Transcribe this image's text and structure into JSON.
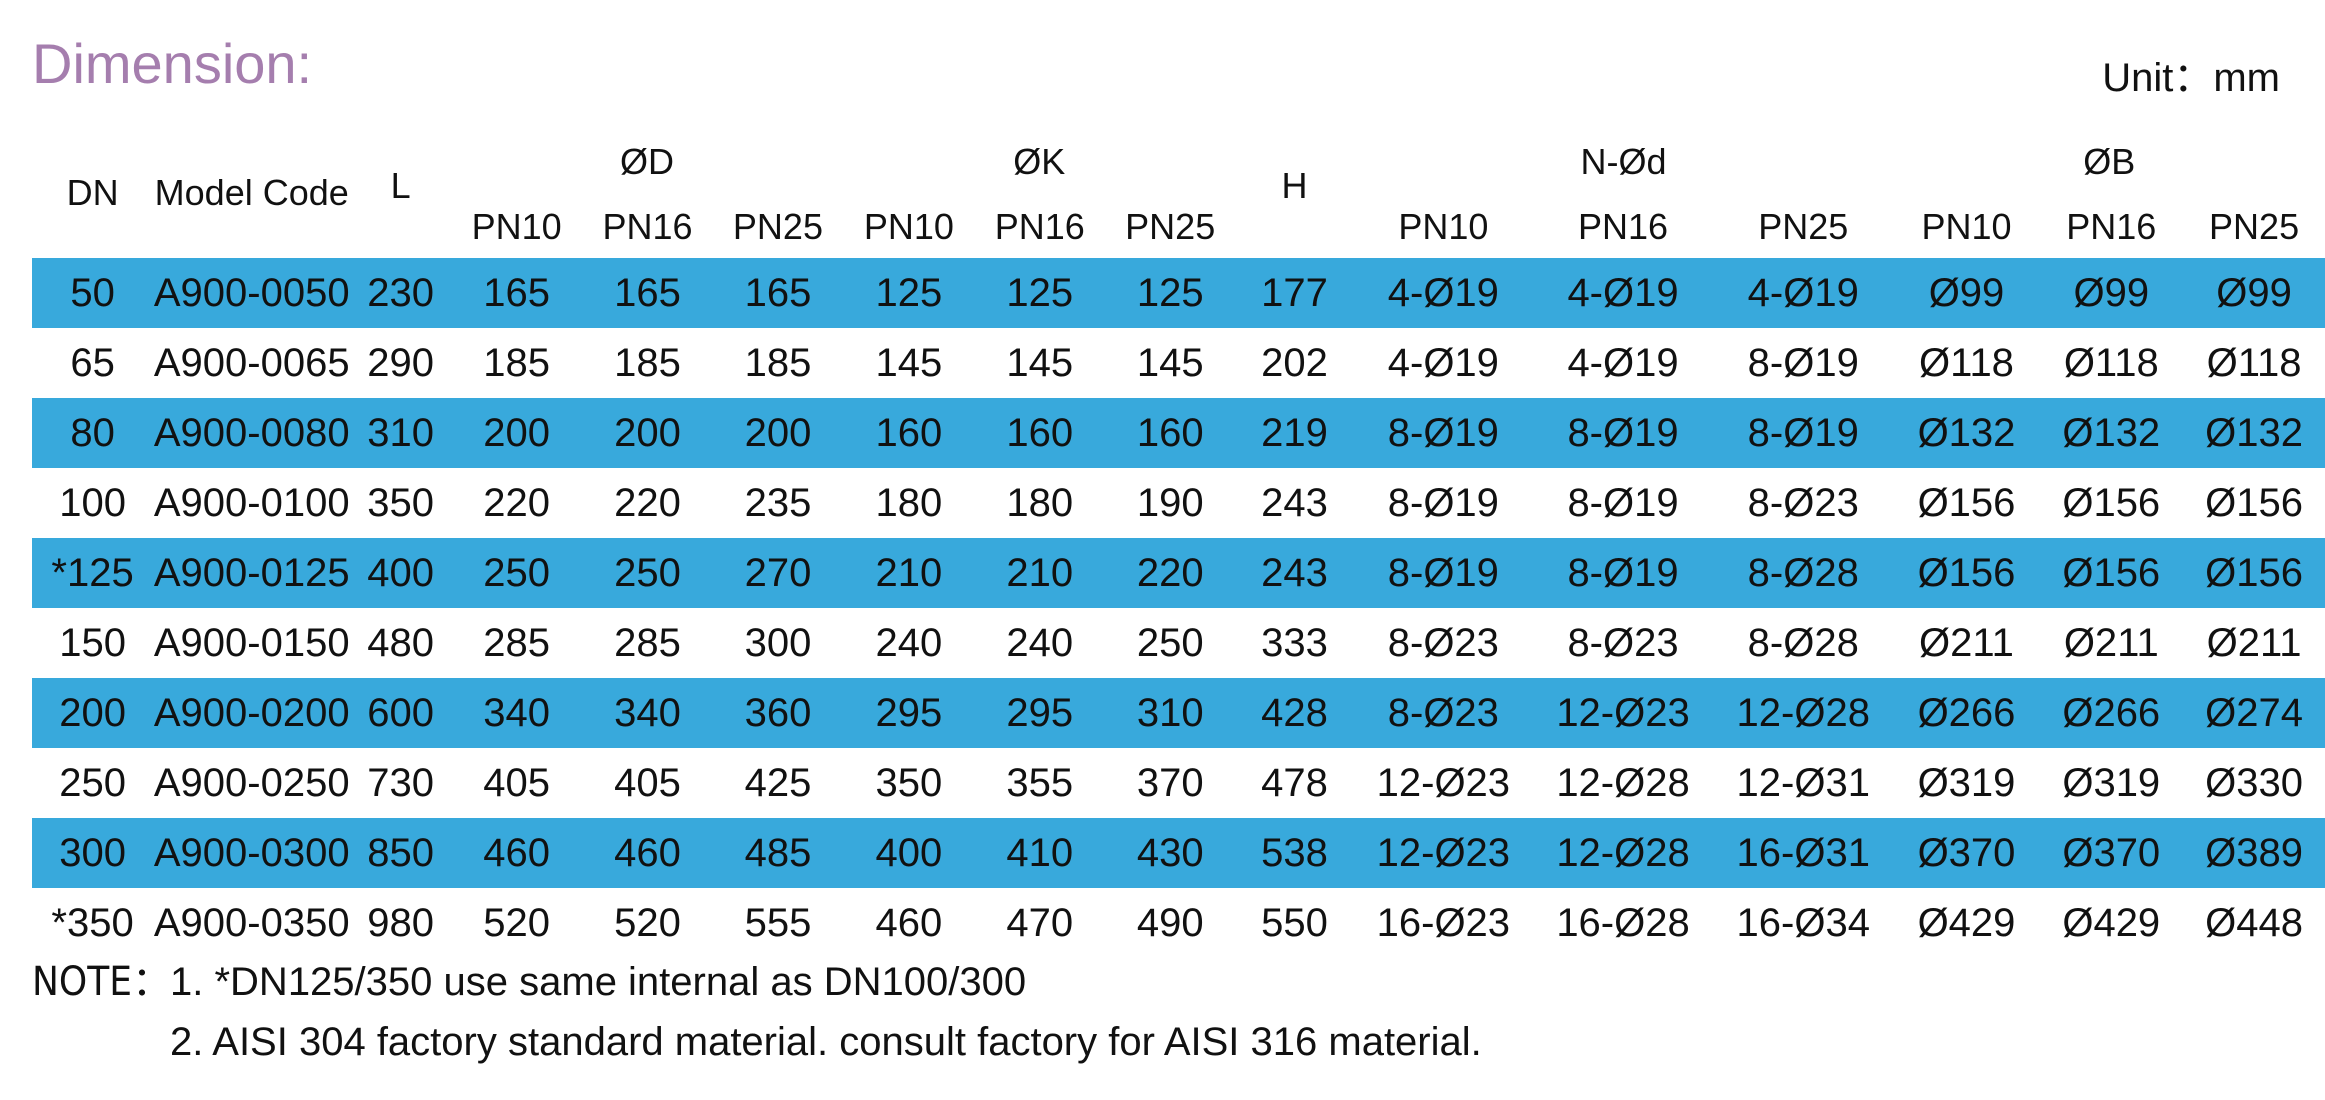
{
  "title": "Dimension:",
  "unit": "Unit：mm",
  "headers": {
    "dn": "DN",
    "model": "Model Code",
    "l": "L",
    "d": "ØD",
    "k": "ØK",
    "h": "H",
    "nd": "N-Ød",
    "b": "ØB",
    "pn": [
      "PN10",
      "PN16",
      "PN25"
    ]
  },
  "rows": [
    [
      "50",
      "A900-0050",
      "230",
      "165",
      "165",
      "165",
      "125",
      "125",
      "125",
      "177",
      "4-Ø19",
      "4-Ø19",
      "4-Ø19",
      "Ø99",
      "Ø99",
      "Ø99"
    ],
    [
      "65",
      "A900-0065",
      "290",
      "185",
      "185",
      "185",
      "145",
      "145",
      "145",
      "202",
      "4-Ø19",
      "4-Ø19",
      "8-Ø19",
      "Ø118",
      "Ø118",
      "Ø118"
    ],
    [
      "80",
      "A900-0080",
      "310",
      "200",
      "200",
      "200",
      "160",
      "160",
      "160",
      "219",
      "8-Ø19",
      "8-Ø19",
      "8-Ø19",
      "Ø132",
      "Ø132",
      "Ø132"
    ],
    [
      "100",
      "A900-0100",
      "350",
      "220",
      "220",
      "235",
      "180",
      "180",
      "190",
      "243",
      "8-Ø19",
      "8-Ø19",
      "8-Ø23",
      "Ø156",
      "Ø156",
      "Ø156"
    ],
    [
      "*125",
      "A900-0125",
      "400",
      "250",
      "250",
      "270",
      "210",
      "210",
      "220",
      "243",
      "8-Ø19",
      "8-Ø19",
      "8-Ø28",
      "Ø156",
      "Ø156",
      "Ø156"
    ],
    [
      "150",
      "A900-0150",
      "480",
      "285",
      "285",
      "300",
      "240",
      "240",
      "250",
      "333",
      "8-Ø23",
      "8-Ø23",
      "8-Ø28",
      "Ø211",
      "Ø211",
      "Ø211"
    ],
    [
      "200",
      "A900-0200",
      "600",
      "340",
      "340",
      "360",
      "295",
      "295",
      "310",
      "428",
      "8-Ø23",
      "12-Ø23",
      "12-Ø28",
      "Ø266",
      "Ø266",
      "Ø274"
    ],
    [
      "250",
      "A900-0250",
      "730",
      "405",
      "405",
      "425",
      "350",
      "355",
      "370",
      "478",
      "12-Ø23",
      "12-Ø28",
      "12-Ø31",
      "Ø319",
      "Ø319",
      "Ø330"
    ],
    [
      "300",
      "A900-0300",
      "850",
      "460",
      "460",
      "485",
      "400",
      "410",
      "430",
      "538",
      "12-Ø23",
      "12-Ø28",
      "16-Ø31",
      "Ø370",
      "Ø370",
      "Ø389"
    ],
    [
      "*350",
      "A900-0350",
      "980",
      "520",
      "520",
      "555",
      "460",
      "470",
      "490",
      "550",
      "16-Ø23",
      "16-Ø28",
      "16-Ø34",
      "Ø429",
      "Ø429",
      "Ø448"
    ]
  ],
  "note_label": "NOTE：",
  "notes": [
    "1. *DN125/350 use same internal as DN100/300",
    "2. AISI 304 factory standard material. consult factory for AISI 316 material."
  ],
  "colors": {
    "title": "#a57eae",
    "stripe": "#38a9dc",
    "text": "#111111"
  }
}
